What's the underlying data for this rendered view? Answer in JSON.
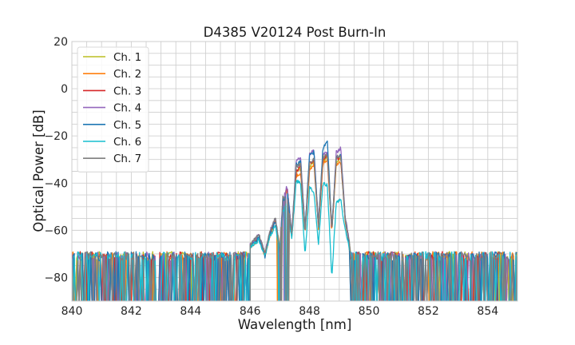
{
  "chart_data": {
    "type": "line",
    "title": "D4385 V20124 Post Burn-In",
    "xlabel": "Wavelength [nm]",
    "ylabel": "Optical Power [dB]",
    "xlim": [
      840,
      855
    ],
    "ylim": [
      -90,
      20
    ],
    "x_ticks": [
      840,
      842,
      844,
      846,
      848,
      850,
      852,
      854
    ],
    "y_ticks": [
      20,
      0,
      -20,
      -40,
      -60,
      -80
    ],
    "x_tick_labels": [
      "840",
      "842",
      "844",
      "846",
      "848",
      "850",
      "852",
      "854"
    ],
    "y_tick_labels": [
      "20",
      "0",
      "−20",
      "−40",
      "−60",
      "−80"
    ],
    "minor_grid_x_step": 0.5,
    "minor_grid_y_step": 5,
    "grid": true,
    "legend_position": "upper-left",
    "noise_floor_db": -71,
    "series": [
      {
        "name": "Ch. 1",
        "color": "#bcbd22",
        "points": [
          [
            846.0,
            -66
          ],
          [
            846.3,
            -63
          ],
          [
            846.5,
            -70
          ],
          [
            846.65,
            -62
          ],
          [
            846.85,
            -55
          ],
          [
            847.0,
            -68
          ],
          [
            847.1,
            -48
          ],
          [
            847.25,
            -42
          ],
          [
            847.4,
            -62
          ],
          [
            847.55,
            -35
          ],
          [
            847.7,
            -34
          ],
          [
            847.85,
            -60
          ],
          [
            848.0,
            -33
          ],
          [
            848.15,
            -31
          ],
          [
            848.3,
            -58
          ],
          [
            848.45,
            -31
          ],
          [
            848.6,
            -29
          ],
          [
            848.75,
            -60
          ],
          [
            848.9,
            -31
          ],
          [
            849.05,
            -29
          ],
          [
            849.2,
            -55
          ],
          [
            849.35,
            -66
          ]
        ]
      },
      {
        "name": "Ch. 2",
        "color": "#ff7f0e",
        "points": [
          [
            846.0,
            -67
          ],
          [
            846.3,
            -64
          ],
          [
            846.5,
            -71
          ],
          [
            846.65,
            -63
          ],
          [
            846.85,
            -56
          ],
          [
            847.0,
            -69
          ],
          [
            847.1,
            -49
          ],
          [
            847.25,
            -43
          ],
          [
            847.4,
            -63
          ],
          [
            847.55,
            -37
          ],
          [
            847.7,
            -36
          ],
          [
            847.85,
            -61
          ],
          [
            848.0,
            -34
          ],
          [
            848.15,
            -32
          ],
          [
            848.3,
            -59
          ],
          [
            848.45,
            -32
          ],
          [
            848.6,
            -30
          ],
          [
            848.75,
            -61
          ],
          [
            848.9,
            -32
          ],
          [
            849.05,
            -31
          ],
          [
            849.2,
            -56
          ],
          [
            849.35,
            -67
          ]
        ]
      },
      {
        "name": "Ch. 3",
        "color": "#d62728",
        "points": [
          [
            846.0,
            -67
          ],
          [
            846.3,
            -63
          ],
          [
            846.5,
            -70
          ],
          [
            846.65,
            -62
          ],
          [
            846.85,
            -56
          ],
          [
            847.0,
            -69
          ],
          [
            847.1,
            -48
          ],
          [
            847.25,
            -42
          ],
          [
            847.4,
            -62
          ],
          [
            847.55,
            -35
          ],
          [
            847.7,
            -33
          ],
          [
            847.85,
            -60
          ],
          [
            848.0,
            -32
          ],
          [
            848.15,
            -30
          ],
          [
            848.3,
            -58
          ],
          [
            848.45,
            -30
          ],
          [
            848.6,
            -28
          ],
          [
            848.75,
            -60
          ],
          [
            848.9,
            -30
          ],
          [
            849.05,
            -29
          ],
          [
            849.2,
            -55
          ],
          [
            849.35,
            -66
          ]
        ]
      },
      {
        "name": "Ch. 4",
        "color": "#9467bd",
        "points": [
          [
            846.0,
            -66
          ],
          [
            846.3,
            -62
          ],
          [
            846.5,
            -70
          ],
          [
            846.65,
            -61
          ],
          [
            846.85,
            -55
          ],
          [
            847.0,
            -68
          ],
          [
            847.1,
            -47
          ],
          [
            847.25,
            -41
          ],
          [
            847.4,
            -62
          ],
          [
            847.55,
            -30
          ],
          [
            847.7,
            -29
          ],
          [
            847.85,
            -60
          ],
          [
            848.0,
            -28
          ],
          [
            848.15,
            -26
          ],
          [
            848.3,
            -57
          ],
          [
            848.45,
            -28
          ],
          [
            848.6,
            -27
          ],
          [
            848.75,
            -60
          ],
          [
            848.9,
            -27
          ],
          [
            849.05,
            -25
          ],
          [
            849.2,
            -54
          ],
          [
            849.35,
            -66
          ]
        ]
      },
      {
        "name": "Ch. 5",
        "color": "#1f77b4",
        "points": [
          [
            846.0,
            -67
          ],
          [
            846.3,
            -63
          ],
          [
            846.5,
            -71
          ],
          [
            846.65,
            -62
          ],
          [
            846.85,
            -56
          ],
          [
            847.0,
            -69
          ],
          [
            847.1,
            -48
          ],
          [
            847.25,
            -43
          ],
          [
            847.4,
            -63
          ],
          [
            847.55,
            -32
          ],
          [
            847.7,
            -31
          ],
          [
            847.85,
            -60
          ],
          [
            848.0,
            -28
          ],
          [
            848.15,
            -27
          ],
          [
            848.3,
            -58
          ],
          [
            848.45,
            -25
          ],
          [
            848.6,
            -22
          ],
          [
            848.75,
            -60
          ],
          [
            848.9,
            -29
          ],
          [
            849.05,
            -28
          ],
          [
            849.2,
            -55
          ],
          [
            849.35,
            -67
          ]
        ]
      },
      {
        "name": "Ch. 6",
        "color": "#17becf",
        "points": [
          [
            846.0,
            -67
          ],
          [
            846.3,
            -64
          ],
          [
            846.5,
            -71
          ],
          [
            846.65,
            -63
          ],
          [
            846.85,
            -58
          ],
          [
            847.0,
            -70
          ],
          [
            847.1,
            -52
          ],
          [
            847.25,
            -48
          ],
          [
            847.4,
            -64
          ],
          [
            847.55,
            -39
          ],
          [
            847.7,
            -40
          ],
          [
            847.85,
            -71
          ],
          [
            848.0,
            -42
          ],
          [
            848.15,
            -44
          ],
          [
            848.3,
            -66
          ],
          [
            848.45,
            -40
          ],
          [
            848.6,
            -41
          ],
          [
            848.75,
            -80
          ],
          [
            848.9,
            -48
          ],
          [
            849.05,
            -47
          ],
          [
            849.2,
            -60
          ],
          [
            849.35,
            -68
          ]
        ]
      },
      {
        "name": "Ch. 7",
        "color": "#7f7f7f",
        "points": [
          [
            846.0,
            -66
          ],
          [
            846.3,
            -62
          ],
          [
            846.5,
            -70
          ],
          [
            846.65,
            -61
          ],
          [
            846.85,
            -54
          ],
          [
            847.0,
            -68
          ],
          [
            847.1,
            -46
          ],
          [
            847.25,
            -46
          ],
          [
            847.4,
            -62
          ],
          [
            847.55,
            -33
          ],
          [
            847.7,
            -32
          ],
          [
            847.85,
            -61
          ],
          [
            848.0,
            -31
          ],
          [
            848.15,
            -30
          ],
          [
            848.3,
            -58
          ],
          [
            848.45,
            -29
          ],
          [
            848.6,
            -28
          ],
          [
            848.75,
            -60
          ],
          [
            848.9,
            -29
          ],
          [
            849.05,
            -28
          ],
          [
            849.2,
            -55
          ],
          [
            849.35,
            -66
          ]
        ]
      }
    ]
  }
}
